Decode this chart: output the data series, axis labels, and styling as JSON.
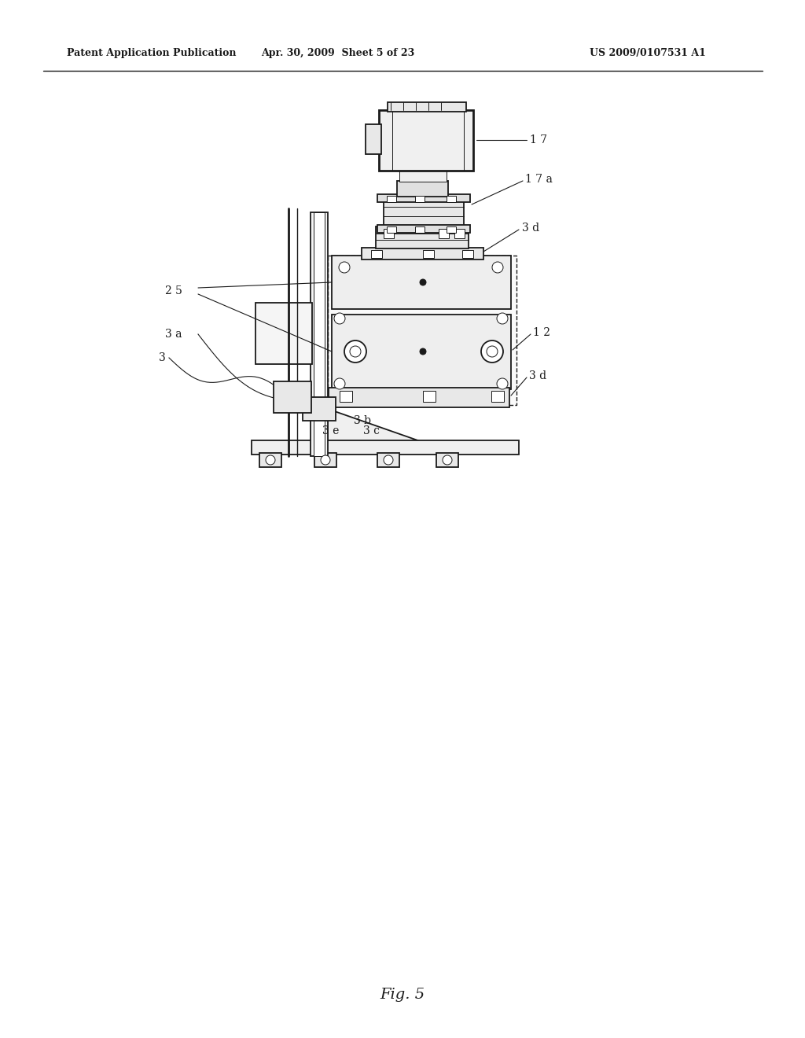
{
  "bg_color": "#ffffff",
  "line_color": "#1a1a1a",
  "header_left": "Patent Application Publication",
  "header_center": "Apr. 30, 2009  Sheet 5 of 23",
  "header_right": "US 2009/0107531 A1",
  "fig_label": "Fig. 5"
}
